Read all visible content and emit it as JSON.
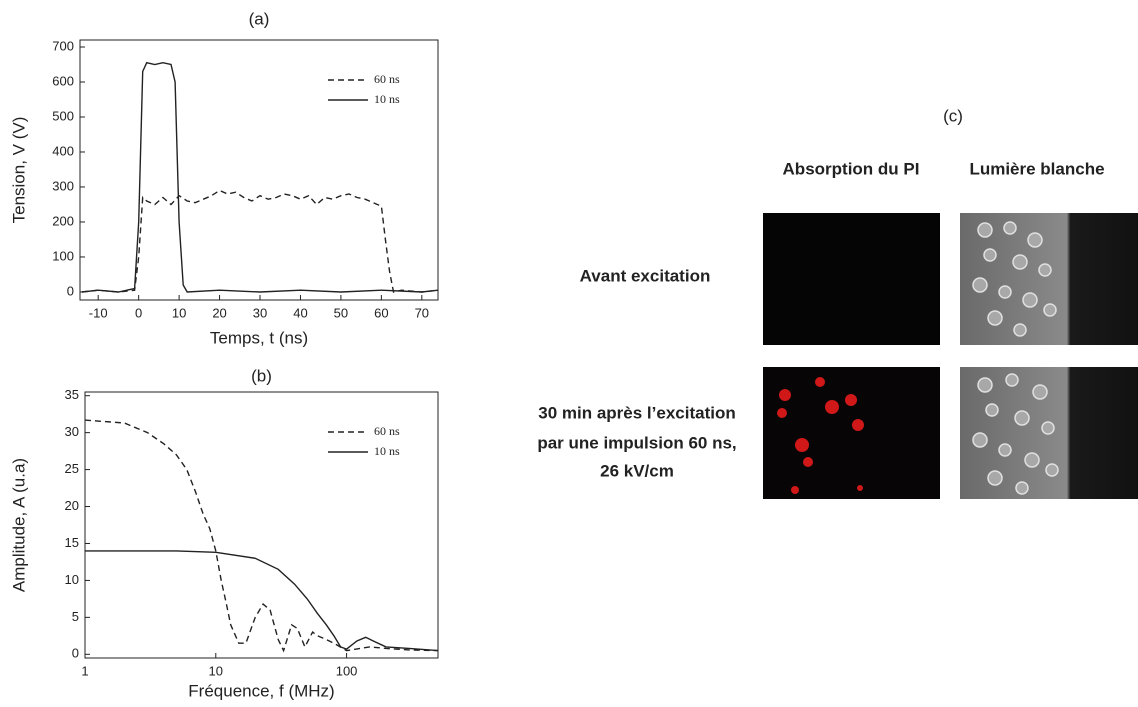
{
  "chart_data": [
    {
      "type": "line",
      "title": "(a)",
      "x_label": "Temps, t (ns)",
      "y_label": "Tension, V (V)",
      "xlim": [
        -14.5,
        74
      ],
      "ylim": [
        -23,
        720
      ],
      "xticks": [
        -10,
        0,
        10,
        20,
        30,
        40,
        50,
        60,
        70
      ],
      "yticks": [
        0,
        100,
        200,
        300,
        400,
        500,
        600,
        700
      ],
      "legend": "upper right",
      "series": [
        {
          "name": "60 ns",
          "color": "#222",
          "style": "dashed",
          "x": [
            -14,
            -10,
            -5,
            -1,
            0,
            1,
            2,
            4,
            6,
            8,
            10,
            12,
            14,
            16,
            18,
            20,
            22,
            24,
            26,
            28,
            30,
            32,
            34,
            36,
            38,
            40,
            42,
            44,
            46,
            48,
            50,
            52,
            54,
            56,
            58,
            60,
            61,
            62,
            63,
            65,
            70,
            74
          ],
          "values": [
            0,
            5,
            0,
            5,
            100,
            270,
            260,
            250,
            270,
            250,
            275,
            260,
            255,
            265,
            275,
            290,
            280,
            285,
            270,
            260,
            275,
            265,
            270,
            280,
            275,
            265,
            275,
            250,
            270,
            265,
            275,
            280,
            270,
            265,
            255,
            245,
            150,
            60,
            0,
            5,
            0,
            5
          ]
        },
        {
          "name": "10 ns",
          "color": "#222",
          "style": "solid",
          "x": [
            -14,
            -10,
            -5,
            -1,
            0,
            1,
            2,
            4,
            6,
            8,
            9,
            10,
            11,
            12,
            20,
            30,
            40,
            50,
            60,
            70,
            74
          ],
          "values": [
            0,
            5,
            0,
            10,
            200,
            630,
            655,
            650,
            655,
            650,
            600,
            200,
            20,
            0,
            5,
            0,
            5,
            0,
            5,
            0,
            5
          ]
        }
      ]
    },
    {
      "type": "line",
      "title": "(b)",
      "x_label": "Fréquence, f (MHz)",
      "y_label": "Amplitude, A (u.a)",
      "xscale": "log",
      "xlim": [
        1,
        500
      ],
      "ylim": [
        -0.5,
        35.5
      ],
      "xticks": [
        1,
        10,
        100
      ],
      "yticks": [
        0,
        5,
        10,
        15,
        20,
        25,
        30,
        35
      ],
      "legend": "upper right",
      "series": [
        {
          "name": "60 ns",
          "color": "#222",
          "style": "dashed",
          "x": [
            1,
            2,
            3,
            4,
            5,
            6,
            7,
            8,
            9,
            10,
            11,
            12,
            13,
            15,
            17,
            20,
            23,
            26,
            30,
            33,
            38,
            42,
            48,
            55,
            60,
            70,
            80,
            100,
            150,
            200,
            300,
            500
          ],
          "values": [
            31.7,
            31.3,
            30,
            28.5,
            27,
            25,
            22,
            19,
            17,
            14,
            10,
            7,
            4,
            1.5,
            1.5,
            5,
            6.8,
            6,
            2,
            0.5,
            4,
            3.5,
            1,
            3,
            2.5,
            2,
            1.5,
            0.5,
            1,
            0.8,
            0.6,
            0.5
          ]
        },
        {
          "name": "10 ns",
          "color": "#222",
          "style": "solid",
          "x": [
            1,
            5,
            10,
            20,
            30,
            40,
            50,
            60,
            70,
            80,
            90,
            100,
            120,
            140,
            160,
            200,
            300,
            500
          ],
          "values": [
            14,
            14,
            13.8,
            13,
            11.5,
            9.5,
            7.5,
            5.5,
            4,
            2.5,
            1,
            0.7,
            1.8,
            2.3,
            1.8,
            1,
            0.8,
            0.5
          ]
        }
      ]
    }
  ],
  "panel_c": {
    "title": "(c)",
    "columns": [
      "Absorption du PI",
      "Lumière blanche"
    ],
    "rows": [
      [
        "Avant excitation"
      ],
      [
        "30 min après l’excitation",
        "par une impulsion 60 ns,",
        "26 kV/cm"
      ]
    ]
  }
}
